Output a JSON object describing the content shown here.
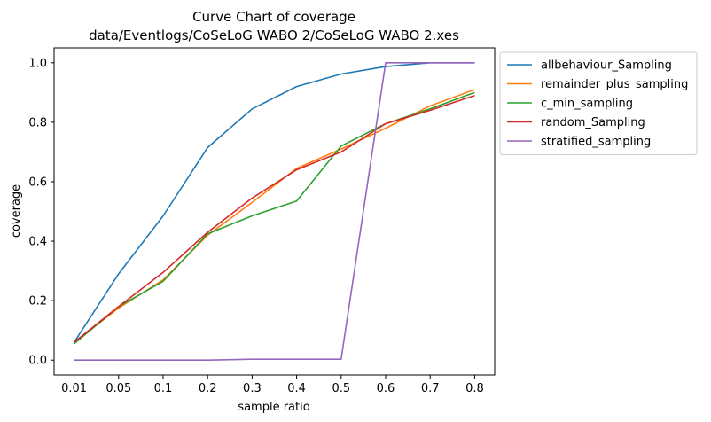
{
  "chart_data": {
    "type": "line",
    "title": "Curve Chart of coverage",
    "subtitle": "data/Eventlogs/CoSeLoG WABO 2/CoSeLoG WABO 2.xes",
    "xlabel": "sample ratio",
    "ylabel": "coverage",
    "categories": [
      "0.01",
      "0.05",
      "0.1",
      "0.2",
      "0.3",
      "0.4",
      "0.5",
      "0.6",
      "0.7",
      "0.8"
    ],
    "ylim": [
      -0.05,
      1.05
    ],
    "yticks": [
      "0.0",
      "0.2",
      "0.4",
      "0.6",
      "0.8",
      "1.0"
    ],
    "legend_position": "outside-top-right",
    "grid": false,
    "series": [
      {
        "name": "allbehaviour_Sampling",
        "color": "#1f77b4",
        "values": [
          0.06,
          0.29,
          0.485,
          0.715,
          0.845,
          0.92,
          0.962,
          0.987,
          1.0,
          1.0
        ]
      },
      {
        "name": "remainder_plus_sampling",
        "color": "#ff7f0e",
        "values": [
          0.06,
          0.175,
          0.27,
          0.42,
          0.53,
          0.645,
          0.71,
          0.78,
          0.855,
          0.91
        ]
      },
      {
        "name": "c_min_sampling",
        "color": "#2ca02c",
        "values": [
          0.055,
          0.18,
          0.265,
          0.425,
          0.485,
          0.535,
          0.72,
          0.795,
          0.845,
          0.9
        ]
      },
      {
        "name": "random_Sampling",
        "color": "#d62728",
        "values": [
          0.06,
          0.18,
          0.295,
          0.43,
          0.545,
          0.64,
          0.7,
          0.795,
          0.84,
          0.89
        ]
      },
      {
        "name": "stratified_sampling",
        "color": "#9467bd",
        "values": [
          0.0,
          0.0,
          0.0,
          0.0,
          0.003,
          0.003,
          0.003,
          1.0,
          1.0,
          1.0
        ]
      }
    ]
  }
}
